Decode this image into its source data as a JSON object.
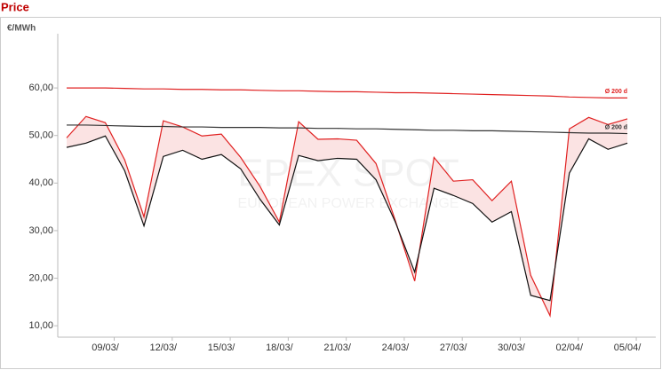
{
  "chart_data": {
    "type": "line",
    "title": "Price",
    "y_label": "€/MWh",
    "watermark": "EPEX SPOT",
    "watermark_subtitle": "EUROPEAN POWER EXCHANGE",
    "categories": [
      null,
      null,
      "09/03/",
      null,
      null,
      "12/03/",
      null,
      null,
      "15/03/",
      null,
      null,
      "18/03/",
      null,
      null,
      "21/03/",
      null,
      null,
      "24/03/",
      null,
      null,
      "27/03/",
      null,
      null,
      "30/03/",
      null,
      null,
      "02/04/",
      null,
      null,
      "05/04/"
    ],
    "series": [
      {
        "color": "#e02020",
        "values": [
          49.5,
          54.0,
          52.7,
          44.9,
          32.9,
          53.1,
          51.8,
          49.9,
          50.3,
          45.4,
          39.3,
          31.8,
          52.9,
          49.2,
          49.3,
          49.0,
          44.1,
          32.1,
          19.4,
          45.4,
          40.4,
          40.7,
          36.3,
          40.4,
          20.6,
          12.1,
          51.4,
          53.8,
          52.3,
          53.5
        ]
      },
      {
        "color": "#111111",
        "values": [
          47.5,
          48.4,
          49.9,
          42.6,
          31.0,
          45.6,
          46.9,
          45.0,
          46.0,
          43.0,
          36.6,
          31.2,
          45.8,
          44.7,
          45.2,
          45.0,
          40.7,
          31.8,
          21.3,
          38.9,
          37.4,
          35.7,
          31.8,
          34.0,
          16.4,
          15.3,
          42.1,
          49.3,
          47.1,
          48.4
        ]
      },
      {
        "name": "Ø 200 d",
        "color": "#e02020",
        "values": [
          60.0,
          60.0,
          60.0,
          59.9,
          59.8,
          59.8,
          59.7,
          59.7,
          59.6,
          59.6,
          59.5,
          59.4,
          59.4,
          59.3,
          59.2,
          59.2,
          59.1,
          59.0,
          59.0,
          58.9,
          58.8,
          58.7,
          58.6,
          58.5,
          58.4,
          58.3,
          58.1,
          58.0,
          57.9,
          57.9
        ]
      },
      {
        "name": "Ø 200 d",
        "color": "#333333",
        "values": [
          52.2,
          52.2,
          52.1,
          52.0,
          51.9,
          51.9,
          51.8,
          51.8,
          51.7,
          51.7,
          51.7,
          51.6,
          51.6,
          51.5,
          51.5,
          51.4,
          51.4,
          51.3,
          51.2,
          51.1,
          51.1,
          51.0,
          51.0,
          50.9,
          50.8,
          50.7,
          50.6,
          50.5,
          50.5,
          50.4
        ]
      }
    ],
    "spread_color": "#fbe3e3",
    "ylim": [
      7.6,
      71.4
    ],
    "yticks": [
      {
        "value": 10,
        "label": "10,00"
      },
      {
        "value": 20,
        "label": "20,00"
      },
      {
        "value": 30,
        "label": "30,00"
      },
      {
        "value": 40,
        "label": "40,00"
      },
      {
        "value": 50,
        "label": "50,00"
      },
      {
        "value": 60,
        "label": "60,00"
      }
    ]
  }
}
